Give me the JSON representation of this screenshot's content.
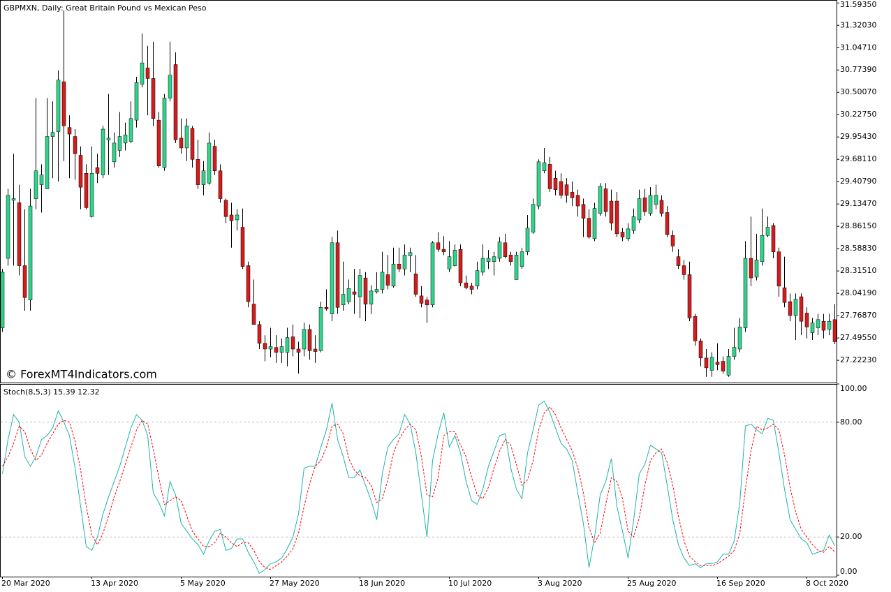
{
  "chart_data": [
    {
      "type": "candlestick",
      "title": "GBPMXN, Daily:  Great Britain Pound vs Mexican Peso",
      "watermark": "© ForexMT4Indicators.com",
      "up_color": "#2fd58c",
      "down_color": "#d41c1c",
      "wick_color": "#000000",
      "categories": [
        "20 Mar 2020",
        null,
        null,
        null,
        null,
        null,
        null,
        null,
        null,
        null,
        null,
        null,
        null,
        null,
        null,
        null,
        "13 Apr 2020",
        null,
        null,
        null,
        null,
        null,
        null,
        null,
        null,
        null,
        null,
        null,
        null,
        null,
        null,
        null,
        "5 May 2020",
        null,
        null,
        null,
        null,
        null,
        null,
        null,
        null,
        null,
        null,
        null,
        null,
        null,
        null,
        null,
        "27 May 2020",
        null,
        null,
        null,
        null,
        null,
        null,
        null,
        null,
        null,
        null,
        null,
        null,
        null,
        null,
        null,
        "18 Jun 2020",
        null,
        null,
        null,
        null,
        null,
        null,
        null,
        null,
        null,
        null,
        null,
        null,
        null,
        null,
        null,
        "10 Jul 2020",
        null,
        null,
        null,
        null,
        null,
        null,
        null,
        null,
        null,
        null,
        null,
        null,
        null,
        null,
        null,
        "3 Aug 2020",
        null,
        null,
        null,
        null,
        null,
        null,
        null,
        null,
        null,
        null,
        null,
        null,
        null,
        null,
        null,
        "25 Aug 2020",
        null,
        null,
        null,
        null,
        null,
        null,
        null,
        null,
        null,
        null,
        null,
        null,
        null,
        null,
        null,
        "16 Sep 2020",
        null,
        null,
        null,
        null,
        null,
        null,
        null,
        null,
        null,
        null,
        null,
        null,
        null,
        null,
        null,
        "8 Oct 2020",
        null,
        null,
        null,
        null,
        null
      ],
      "open": [
        27.62,
        28.47,
        29.18,
        29.15,
        28.38,
        27.96,
        29.2,
        29.37,
        29.32,
        29.96,
        30.02,
        30.63,
        30.07,
        29.96,
        29.73,
        29.51,
        28.98,
        29.58,
        29.49,
        29.92,
        29.65,
        29.79,
        29.88,
        29.9,
        30.16,
        30.6,
        30.8,
        30.67,
        30.16,
        29.58,
        30.43,
        30.84,
        29.94,
        29.82,
        30.06,
        29.68,
        29.37,
        29.39,
        29.84,
        29.54,
        29.18,
        29.0,
        28.94,
        28.85,
        28.38,
        27.91,
        27.66,
        27.43,
        27.36,
        27.38,
        27.32,
        27.32,
        27.51,
        27.36,
        27.36,
        27.6,
        27.36,
        27.34,
        27.87,
        27.79,
        28.66,
        27.9,
        27.94,
        28.06,
        28.0,
        28.23,
        27.91,
        28.06,
        28.09,
        28.27,
        28.13,
        28.4,
        28.34,
        28.5,
        28.28,
        28.01,
        27.96,
        27.9,
        28.66,
        28.58,
        28.34,
        28.38,
        28.58,
        28.17,
        28.13,
        28.13,
        28.3,
        28.43,
        28.43,
        28.47,
        28.66,
        28.51,
        28.21,
        28.37,
        28.55,
        28.79,
        29.11,
        29.54,
        29.62,
        29.45,
        29.41,
        29.37,
        29.28,
        29.24,
        29.13,
        28.96,
        28.71,
        29.02,
        29.32,
        29.17,
        29.17,
        28.79,
        28.71,
        28.81,
        28.94,
        29.21,
        29.02,
        29.13,
        29.18,
        29.03,
        28.75,
        28.49,
        28.38,
        28.27,
        27.76,
        27.46,
        27.25,
        27.1,
        27.2,
        27.21,
        27.04,
        27.27,
        27.36,
        27.62,
        28.47,
        28.24,
        28.43,
        28.75,
        28.87,
        28.55,
        28.11,
        27.94,
        27.77,
        28.0,
        27.8,
        27.56,
        27.62,
        27.7,
        27.6,
        27.72
      ],
      "high": [
        28.34,
        29.32,
        29.75,
        29.37,
        29.07,
        29.32,
        30.43,
        29.62,
        30.43,
        30.39,
        30.77,
        31.5,
        30.22,
        30.05,
        29.84,
        29.62,
        29.84,
        29.75,
        30.09,
        30.48,
        30.01,
        30.26,
        30.13,
        30.39,
        30.69,
        31.22,
        31.07,
        31.12,
        30.26,
        30.48,
        31.12,
        30.99,
        30.18,
        30.18,
        30.09,
        29.92,
        29.66,
        30.01,
        29.92,
        29.62,
        29.2,
        29.15,
        29.07,
        29.08,
        28.43,
        28.21,
        27.7,
        27.53,
        27.62,
        27.53,
        27.49,
        27.62,
        27.66,
        27.45,
        27.68,
        27.66,
        27.53,
        27.94,
        28.09,
        28.73,
        28.81,
        28.43,
        28.21,
        28.34,
        28.34,
        28.3,
        28.14,
        28.3,
        28.55,
        28.51,
        28.6,
        28.6,
        28.64,
        28.6,
        28.51,
        28.13,
        28.0,
        28.68,
        28.79,
        28.74,
        28.68,
        28.64,
        28.64,
        28.26,
        28.17,
        28.43,
        28.64,
        28.57,
        28.55,
        28.73,
        28.77,
        28.55,
        28.55,
        28.6,
        29.0,
        29.2,
        29.68,
        29.82,
        29.71,
        29.54,
        29.51,
        29.45,
        29.41,
        29.31,
        29.2,
        29.07,
        29.15,
        29.39,
        29.39,
        29.31,
        29.28,
        28.84,
        28.9,
        29.08,
        29.31,
        29.32,
        29.34,
        29.37,
        29.24,
        29.11,
        28.81,
        28.58,
        28.45,
        28.43,
        27.79,
        27.49,
        27.36,
        27.32,
        27.43,
        27.27,
        27.36,
        27.62,
        27.74,
        28.68,
        28.98,
        28.77,
        29.08,
        28.98,
        28.9,
        28.6,
        28.49,
        28.04,
        28.04,
        28.04,
        27.87,
        27.74,
        27.79,
        27.79,
        27.79,
        27.91
      ],
      "low": [
        27.57,
        28.38,
        28.38,
        28.26,
        27.83,
        27.83,
        29.07,
        29.03,
        29.32,
        29.45,
        29.41,
        29.66,
        29.45,
        29.43,
        29.07,
        29.07,
        28.97,
        29.39,
        29.45,
        29.49,
        29.58,
        29.71,
        29.79,
        29.88,
        30.07,
        30.56,
        30.22,
        30.09,
        29.58,
        29.54,
        30.39,
        29.88,
        29.75,
        29.66,
        29.58,
        29.32,
        29.24,
        29.37,
        29.49,
        29.15,
        28.9,
        28.6,
        28.81,
        28.34,
        27.87,
        27.66,
        27.36,
        27.21,
        27.26,
        27.19,
        27.19,
        27.15,
        27.27,
        27.06,
        27.27,
        27.23,
        27.19,
        27.32,
        27.83,
        27.7,
        27.79,
        27.83,
        27.91,
        27.79,
        27.74,
        27.7,
        27.79,
        28.04,
        28.04,
        28.09,
        28.11,
        28.3,
        28.26,
        28.3,
        28.0,
        27.87,
        27.68,
        27.87,
        28.55,
        28.51,
        28.3,
        28.37,
        28.13,
        28.09,
        28.03,
        28.09,
        28.26,
        28.34,
        28.26,
        28.43,
        28.47,
        28.38,
        28.21,
        28.34,
        28.51,
        28.77,
        29.07,
        29.51,
        29.28,
        29.24,
        29.2,
        29.15,
        29.11,
        28.98,
        28.73,
        28.71,
        28.68,
        28.99,
        28.98,
        28.81,
        28.73,
        28.68,
        28.68,
        28.77,
        28.9,
        28.99,
        28.99,
        29.07,
        28.98,
        28.73,
        28.55,
        28.34,
        28.21,
        27.7,
        27.4,
        27.15,
        27.02,
        27.02,
        27.1,
        27.06,
        27.02,
        27.23,
        27.32,
        27.57,
        28.13,
        28.2,
        28.38,
        28.73,
        28.47,
        28.0,
        27.87,
        27.7,
        27.47,
        27.53,
        27.49,
        27.47,
        27.53,
        27.49,
        27.53,
        27.42
      ],
      "close": [
        28.3,
        29.24,
        29.2,
        28.38,
        27.99,
        29.11,
        29.54,
        29.49,
        29.96,
        30.01,
        30.65,
        30.09,
        29.99,
        29.75,
        29.34,
        29.09,
        29.51,
        29.51,
        30.05,
        29.94,
        29.88,
        29.96,
        29.98,
        30.18,
        30.62,
        30.86,
        30.67,
        30.18,
        29.6,
        30.43,
        30.71,
        29.92,
        29.82,
        30.09,
        29.68,
        29.37,
        29.54,
        29.88,
        29.54,
        29.2,
        28.98,
        28.93,
        29.0,
        28.37,
        27.94,
        27.66,
        27.43,
        27.36,
        27.39,
        27.32,
        27.39,
        27.5,
        27.36,
        27.32,
        27.6,
        27.34,
        27.33,
        27.87,
        27.85,
        28.66,
        27.87,
        28.03,
        28.1,
        28.03,
        28.26,
        27.91,
        28.07,
        28.09,
        28.3,
        28.14,
        28.4,
        28.34,
        28.51,
        28.54,
        28.03,
        27.92,
        27.9,
        28.66,
        28.58,
        28.55,
        28.49,
        28.57,
        28.17,
        28.11,
        28.09,
        28.32,
        28.47,
        28.47,
        28.49,
        28.67,
        28.49,
        28.43,
        28.51,
        28.55,
        28.84,
        29.13,
        29.65,
        29.64,
        29.32,
        29.31,
        29.24,
        29.24,
        29.21,
        29.11,
        28.96,
        28.73,
        29.08,
        29.35,
        29.04,
        28.9,
        28.77,
        28.73,
        28.83,
        28.98,
        29.2,
        29.04,
        29.24,
        29.24,
        29.02,
        28.76,
        28.62,
        28.38,
        28.27,
        27.74,
        27.46,
        27.25,
        27.13,
        27.26,
        27.17,
        27.09,
        27.27,
        27.38,
        27.63,
        28.47,
        28.23,
        28.45,
        28.75,
        28.85,
        28.55,
        28.13,
        27.93,
        27.77,
        27.97,
        27.7,
        27.63,
        27.68,
        27.72,
        27.59,
        27.7,
        27.45
      ],
      "ylim": [
        26.95,
        31.63
      ],
      "yticks": [
        {
          "value": 31.5935,
          "label": "31.59350"
        },
        {
          "value": 31.3203,
          "label": "31.32030"
        },
        {
          "value": 31.0471,
          "label": "31.04710"
        },
        {
          "value": 30.7739,
          "label": "30.77390"
        },
        {
          "value": 30.5007,
          "label": "30.50070"
        },
        {
          "value": 30.2275,
          "label": "30.22750"
        },
        {
          "value": 29.9543,
          "label": "29.95430"
        },
        {
          "value": 29.6811,
          "label": "29.68110"
        },
        {
          "value": 29.4079,
          "label": "29.40790"
        },
        {
          "value": 29.1347,
          "label": "29.13470"
        },
        {
          "value": 28.8615,
          "label": "28.86150"
        },
        {
          "value": 28.5883,
          "label": "28.58830"
        },
        {
          "value": 28.3151,
          "label": "28.31510"
        },
        {
          "value": 28.0419,
          "label": "28.04190"
        },
        {
          "value": 27.7687,
          "label": "27.76870"
        },
        {
          "value": 27.4955,
          "label": "27.49550"
        },
        {
          "value": 27.2223,
          "label": "27.22230"
        }
      ]
    },
    {
      "type": "line",
      "title": "Stoch(8,5,3) 15.39 12.32",
      "series": [
        {
          "color": "#20b2aa",
          "dash": false,
          "values": [
            53,
            71,
            84,
            80,
            62,
            57,
            62,
            71,
            73,
            77,
            86,
            80,
            73,
            56,
            36,
            15,
            13,
            20,
            32,
            41,
            49,
            57,
            67,
            77,
            84,
            81,
            73,
            43,
            38,
            31,
            49,
            42,
            27,
            23,
            19,
            16,
            11,
            18,
            23,
            24,
            13,
            14,
            19,
            19,
            12,
            7,
            1,
            3,
            6,
            7,
            9,
            14,
            20,
            32,
            56,
            57,
            57,
            67,
            76,
            90,
            71,
            62,
            51,
            51,
            55,
            47,
            39,
            29,
            53,
            67,
            71,
            74,
            84,
            79,
            64,
            42,
            20,
            60,
            74,
            85,
            67,
            73,
            64,
            49,
            39,
            37,
            45,
            57,
            65,
            73,
            74,
            56,
            45,
            40,
            64,
            76,
            89,
            91,
            85,
            77,
            69,
            66,
            60,
            43,
            27,
            4,
            20,
            42,
            49,
            61,
            36,
            23,
            9,
            29,
            53,
            58,
            68,
            66,
            64,
            47,
            29,
            16,
            9,
            5,
            6,
            4,
            6,
            6,
            7,
            11,
            11,
            18,
            38,
            78,
            79,
            76,
            74,
            82,
            81,
            64,
            45,
            29,
            24,
            19,
            17,
            11,
            12,
            13,
            21,
            15.39
          ]
        },
        {
          "color": "#ff0000",
          "dash": true,
          "values": [
            57,
            62,
            69,
            78,
            75,
            66,
            60,
            63,
            69,
            74,
            79,
            81,
            80,
            70,
            55,
            36,
            21,
            16,
            22,
            31,
            41,
            49,
            58,
            67,
            76,
            81,
            79,
            66,
            51,
            37,
            39,
            41,
            39,
            31,
            23,
            19,
            15,
            15,
            17,
            22,
            20,
            17,
            15,
            17,
            17,
            13,
            7,
            4,
            3,
            5,
            7,
            10,
            14,
            22,
            36,
            48,
            57,
            60,
            67,
            78,
            79,
            74,
            61,
            55,
            52,
            51,
            47,
            38,
            40,
            50,
            64,
            71,
            76,
            79,
            76,
            62,
            42,
            41,
            51,
            73,
            75,
            75,
            68,
            62,
            51,
            42,
            40,
            46,
            56,
            65,
            71,
            68,
            58,
            47,
            50,
            60,
            76,
            85,
            88,
            84,
            77,
            71,
            65,
            56,
            43,
            25,
            17,
            22,
            37,
            51,
            49,
            40,
            23,
            20,
            30,
            47,
            60,
            64,
            66,
            59,
            47,
            31,
            18,
            10,
            7,
            5,
            5,
            5,
            6,
            8,
            10,
            13,
            22,
            45,
            65,
            78,
            76,
            77,
            79,
            76,
            63,
            46,
            33,
            24,
            20,
            16,
            13,
            12,
            15,
            12.32
          ]
        }
      ],
      "levels": [
        20,
        80
      ],
      "ylim": [
        0,
        100
      ],
      "yticks": [
        {
          "value": 100,
          "label": "100.00"
        },
        {
          "value": 80,
          "label": "80.00"
        },
        {
          "value": 20,
          "label": "20.00"
        },
        {
          "value": 0,
          "label": "0.00"
        }
      ]
    }
  ]
}
